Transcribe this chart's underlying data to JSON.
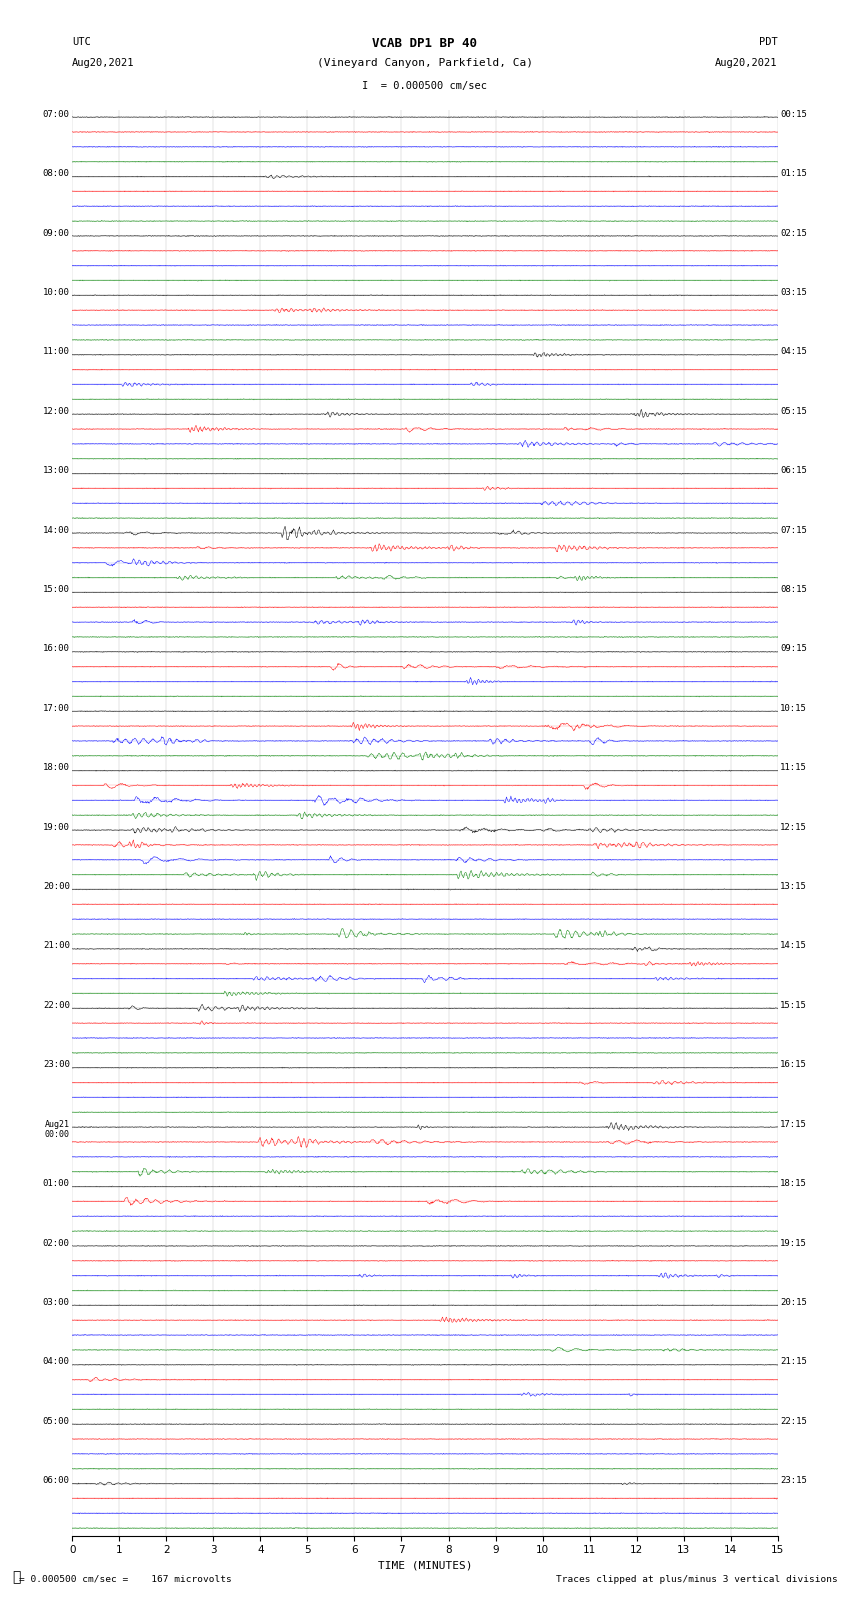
{
  "title_line1": "VCAB DP1 BP 40",
  "title_line2": "(Vineyard Canyon, Parkfield, Ca)",
  "title_line3": "I  = 0.000500 cm/sec",
  "left_label_top": "UTC",
  "left_label_date": "Aug20,2021",
  "right_label_top": "PDT",
  "right_label_date": "Aug20,2021",
  "bottom_label": "TIME (MINUTES)",
  "bottom_note_left": "= 0.000500 cm/sec =    167 microvolts",
  "bottom_note_right": "Traces clipped at plus/minus 3 vertical divisions",
  "xlabel_ticks": [
    0,
    1,
    2,
    3,
    4,
    5,
    6,
    7,
    8,
    9,
    10,
    11,
    12,
    13,
    14,
    15
  ],
  "left_times_utc": [
    "07:00",
    "",
    "",
    "",
    "08:00",
    "",
    "",
    "",
    "09:00",
    "",
    "",
    "",
    "10:00",
    "",
    "",
    "",
    "11:00",
    "",
    "",
    "",
    "12:00",
    "",
    "",
    "",
    "13:00",
    "",
    "",
    "",
    "14:00",
    "",
    "",
    "",
    "15:00",
    "",
    "",
    "",
    "16:00",
    "",
    "",
    "",
    "17:00",
    "",
    "",
    "",
    "18:00",
    "",
    "",
    "",
    "19:00",
    "",
    "",
    "",
    "20:00",
    "",
    "",
    "",
    "21:00",
    "",
    "",
    "",
    "22:00",
    "",
    "",
    "",
    "23:00",
    "",
    "",
    "",
    "Aug21\n00:00",
    "",
    "",
    "",
    "01:00",
    "",
    "",
    "",
    "02:00",
    "",
    "",
    "",
    "03:00",
    "",
    "",
    "",
    "04:00",
    "",
    "",
    "",
    "05:00",
    "",
    "",
    "",
    "06:00",
    "",
    "",
    ""
  ],
  "right_times_pdt": [
    "00:15",
    "",
    "",
    "",
    "01:15",
    "",
    "",
    "",
    "02:15",
    "",
    "",
    "",
    "03:15",
    "",
    "",
    "",
    "04:15",
    "",
    "",
    "",
    "05:15",
    "",
    "",
    "",
    "06:15",
    "",
    "",
    "",
    "07:15",
    "",
    "",
    "",
    "08:15",
    "",
    "",
    "",
    "09:15",
    "",
    "",
    "",
    "10:15",
    "",
    "",
    "",
    "11:15",
    "",
    "",
    "",
    "12:15",
    "",
    "",
    "",
    "13:15",
    "",
    "",
    "",
    "14:15",
    "",
    "",
    "",
    "15:15",
    "",
    "",
    "",
    "16:15",
    "",
    "",
    "",
    "17:15",
    "",
    "",
    "",
    "18:15",
    "",
    "",
    "",
    "19:15",
    "",
    "",
    "",
    "20:15",
    "",
    "",
    "",
    "21:15",
    "",
    "",
    "",
    "22:15",
    "",
    "",
    "",
    "23:15",
    "",
    "",
    ""
  ],
  "n_rows": 96,
  "row_colors_cycle": [
    "black",
    "red",
    "blue",
    "green"
  ],
  "background_color": "white",
  "fig_width": 8.5,
  "fig_height": 16.13,
  "dpi": 100,
  "xmin": 0,
  "xmax": 15
}
